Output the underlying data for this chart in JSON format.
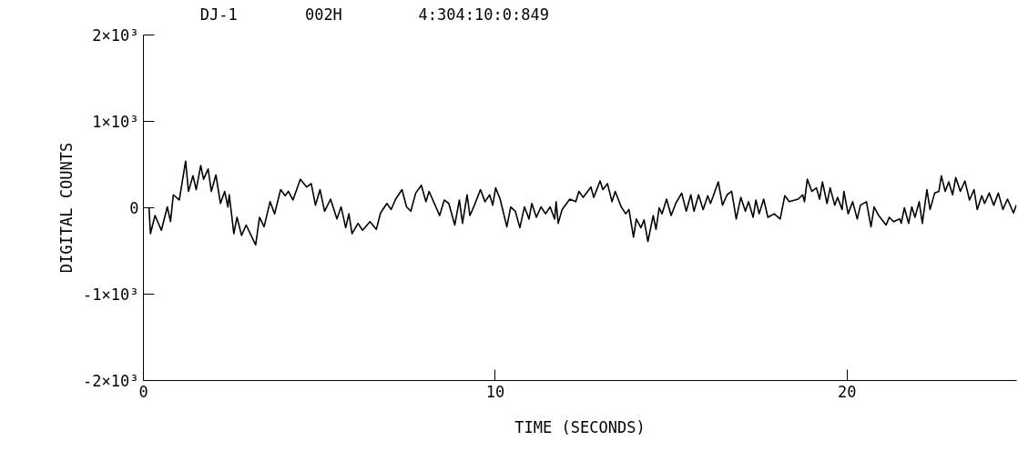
{
  "chart_data": {
    "type": "line",
    "xlabel": "TIME (SECONDS)",
    "ylabel": "DIGITAL COUNTS",
    "annotations": [
      "DJ-1",
      "002H",
      "4:304:10:0:849"
    ],
    "series": [
      {
        "color": "#000000",
        "x": [
          0.16,
          0.2,
          0.33,
          0.51,
          0.68,
          0.77,
          0.85,
          1.02,
          1.2,
          1.28,
          1.41,
          1.5,
          1.63,
          1.71,
          1.84,
          1.93,
          2.06,
          2.19,
          2.31,
          2.4,
          2.44,
          2.57,
          2.66,
          2.79,
          2.92,
          3.19,
          3.3,
          3.43,
          3.6,
          3.73,
          3.9,
          4.03,
          4.12,
          4.25,
          4.46,
          4.64,
          4.77,
          4.89,
          5.02,
          5.15,
          5.32,
          5.5,
          5.62,
          5.75,
          5.84,
          5.93,
          6.1,
          6.23,
          6.44,
          6.62,
          6.74,
          6.92,
          7.04,
          7.17,
          7.35,
          7.48,
          7.6,
          7.74,
          7.9,
          8.03,
          8.12,
          8.29,
          8.42,
          8.55,
          8.68,
          8.85,
          8.98,
          9.07,
          9.2,
          9.28,
          9.41,
          9.58,
          9.71,
          9.84,
          9.93,
          10.01,
          10.14,
          10.33,
          10.44,
          10.57,
          10.7,
          10.83,
          10.96,
          11.04,
          11.17,
          11.3,
          11.43,
          11.56,
          11.69,
          11.73,
          11.79,
          11.9,
          12.03,
          12.12,
          12.29,
          12.38,
          12.5,
          12.72,
          12.8,
          12.98,
          13.06,
          13.19,
          13.32,
          13.41,
          13.58,
          13.71,
          13.8,
          13.93,
          14.01,
          14.14,
          14.23,
          14.34,
          14.49,
          14.57,
          14.66,
          14.74,
          14.87,
          15.0,
          15.13,
          15.3,
          15.43,
          15.56,
          15.65,
          15.78,
          15.91,
          16.04,
          16.12,
          16.34,
          16.46,
          16.59,
          16.72,
          16.85,
          16.98,
          17.11,
          17.2,
          17.33,
          17.41,
          17.5,
          17.63,
          17.75,
          17.93,
          18.1,
          18.23,
          18.36,
          18.61,
          18.74,
          18.79,
          18.87,
          19.0,
          19.13,
          19.22,
          19.3,
          19.43,
          19.52,
          19.65,
          19.73,
          19.86,
          19.91,
          20.03,
          20.16,
          20.29,
          20.38,
          20.55,
          20.68,
          20.77,
          20.9,
          21.11,
          21.2,
          21.32,
          21.5,
          21.54,
          21.63,
          21.75,
          21.84,
          21.93,
          22.05,
          22.14,
          22.27,
          22.36,
          22.49,
          22.61,
          22.68,
          22.79,
          22.89,
          23.0,
          23.09,
          23.22,
          23.35,
          23.48,
          23.61,
          23.7,
          23.83,
          23.91,
          24.04,
          24.17,
          24.3,
          24.43,
          24.56,
          24.73,
          24.81
        ],
        "values": [
          0,
          -300,
          -90,
          -260,
          10,
          -160,
          150,
          90,
          540,
          190,
          370,
          210,
          490,
          330,
          450,
          190,
          380,
          50,
          190,
          10,
          150,
          -300,
          -110,
          -320,
          -200,
          -430,
          -110,
          -220,
          70,
          -70,
          210,
          140,
          190,
          90,
          330,
          240,
          280,
          30,
          210,
          -40,
          100,
          -130,
          10,
          -230,
          -70,
          -300,
          -180,
          -260,
          -160,
          -250,
          -60,
          50,
          -20,
          100,
          210,
          10,
          -40,
          170,
          260,
          70,
          190,
          30,
          -90,
          90,
          50,
          -200,
          90,
          -180,
          150,
          -90,
          30,
          210,
          70,
          150,
          30,
          230,
          100,
          -220,
          10,
          -40,
          -230,
          10,
          -130,
          50,
          -110,
          10,
          -70,
          10,
          -130,
          70,
          -180,
          -20,
          50,
          100,
          70,
          190,
          120,
          240,
          120,
          310,
          210,
          280,
          70,
          190,
          10,
          -70,
          -20,
          -340,
          -130,
          -230,
          -140,
          -390,
          -90,
          -250,
          0,
          -70,
          100,
          -90,
          50,
          170,
          -40,
          150,
          -40,
          150,
          -20,
          140,
          50,
          300,
          30,
          150,
          190,
          -130,
          120,
          -40,
          70,
          -110,
          90,
          -70,
          100,
          -110,
          -70,
          -130,
          140,
          70,
          100,
          150,
          70,
          330,
          190,
          230,
          100,
          300,
          50,
          230,
          30,
          120,
          -20,
          190,
          -70,
          70,
          -130,
          30,
          70,
          -220,
          10,
          -90,
          -200,
          -110,
          -160,
          -130,
          -180,
          0,
          -180,
          10,
          -110,
          70,
          -180,
          210,
          -20,
          170,
          190,
          370,
          190,
          300,
          150,
          350,
          190,
          310,
          90,
          210,
          -20,
          140,
          50,
          170,
          30,
          170,
          -20,
          100,
          -60,
          30
        ]
      }
    ],
    "xlim": [
      0,
      24.82
    ],
    "ylim": [
      -2000,
      2000
    ],
    "xticks": [
      0,
      10,
      20
    ],
    "yticks": [
      {
        "value": -2000,
        "label": "-2×10³"
      },
      {
        "value": -1000,
        "label": "-1×10³"
      },
      {
        "value": 0,
        "label": "0"
      },
      {
        "value": 1000,
        "label": "1×10³"
      },
      {
        "value": 2000,
        "label": "2×10³"
      }
    ],
    "grid": false
  }
}
